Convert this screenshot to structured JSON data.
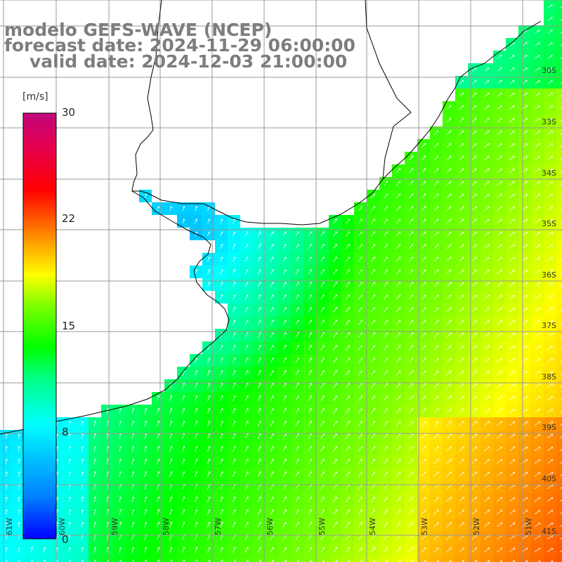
{
  "title": {
    "line1": "modelo GEFS-WAVE (NCEP)",
    "line2": "forecast date: 2024-11-29 06:00:00",
    "line3": "valid date: 2024-12-03 21:00:00"
  },
  "legend": {
    "unit": "[m/s]",
    "min": 0,
    "max": 30,
    "ticks": [
      {
        "value": 30,
        "label": "30"
      },
      {
        "value": 22,
        "label": "22"
      },
      {
        "value": 15,
        "label": "15"
      },
      {
        "value": 8,
        "label": "8"
      },
      {
        "value": 0,
        "label": "0"
      }
    ],
    "colors": [
      "#0000ff",
      "#0080ff",
      "#00ffff",
      "#00ff80",
      "#00ff00",
      "#80ff00",
      "#ffff00",
      "#ff8000",
      "#ff0000",
      "#e60050",
      "#c0067a"
    ]
  },
  "map": {
    "lon_range": [
      -62,
      -50.9
    ],
    "lat_range": [
      -41.2,
      -30.5
    ],
    "longitude_labels": [
      "61W",
      "60W",
      "59W",
      "58W",
      "57W",
      "56W",
      "55W",
      "54W",
      "53W",
      "52W",
      "51W"
    ],
    "latitude_labels": [
      "30S",
      "33S",
      "34S",
      "35S",
      "36S",
      "37S",
      "38S",
      "39S",
      "40S",
      "41S"
    ],
    "land_color": "#ffffff",
    "grid_color": "#999999",
    "arrow_color": "#ffffff"
  }
}
